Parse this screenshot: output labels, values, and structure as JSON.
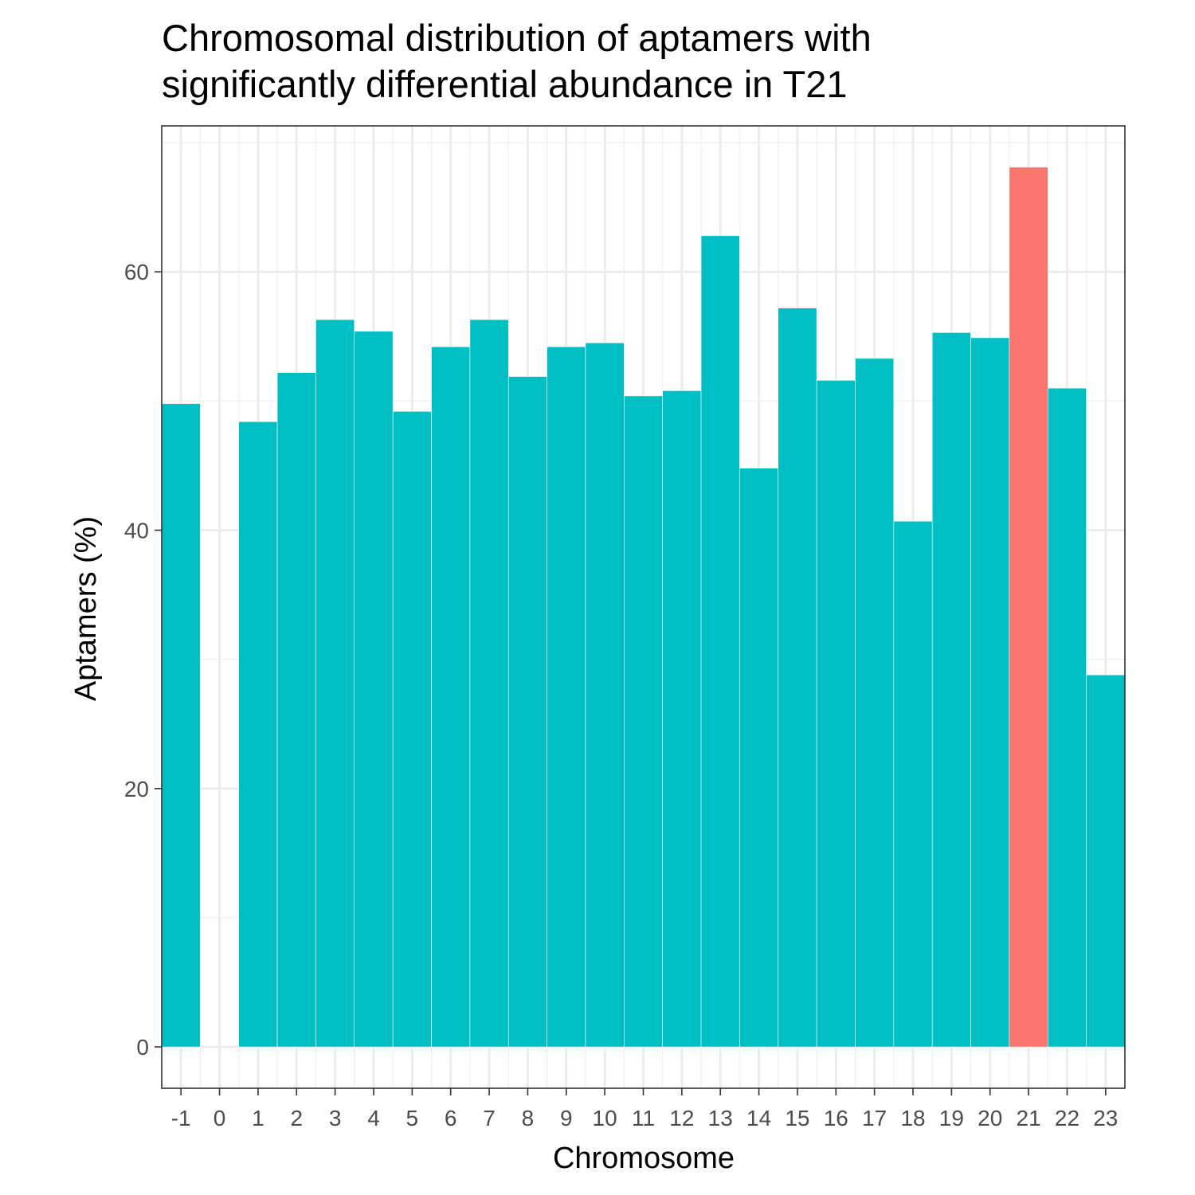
{
  "chart_data": {
    "type": "bar",
    "title_lines": [
      "Chromosomal distribution of aptamers with",
      "significantly differential abundance in T21"
    ],
    "xlabel": "Chromosome",
    "ylabel": "Aptamers (%)",
    "categories": [
      "-1",
      "0",
      "1",
      "2",
      "3",
      "4",
      "5",
      "6",
      "7",
      "8",
      "9",
      "10",
      "11",
      "12",
      "13",
      "14",
      "15",
      "16",
      "17",
      "18",
      "19",
      "20",
      "21",
      "22",
      "23"
    ],
    "values": [
      49.8,
      0,
      48.4,
      52.2,
      56.3,
      55.4,
      49.2,
      54.2,
      56.3,
      51.9,
      54.2,
      54.5,
      50.4,
      50.8,
      62.8,
      44.8,
      57.2,
      51.6,
      53.3,
      40.7,
      55.3,
      54.9,
      68.1,
      51.0,
      28.8
    ],
    "highlight_category": "21",
    "colors": {
      "default": "#00BFC4",
      "highlight": "#F8766D"
    },
    "ylim": [
      -3.2,
      71.3
    ],
    "yticks": [
      0,
      20,
      40,
      60
    ],
    "grid": true,
    "legend": "none"
  }
}
